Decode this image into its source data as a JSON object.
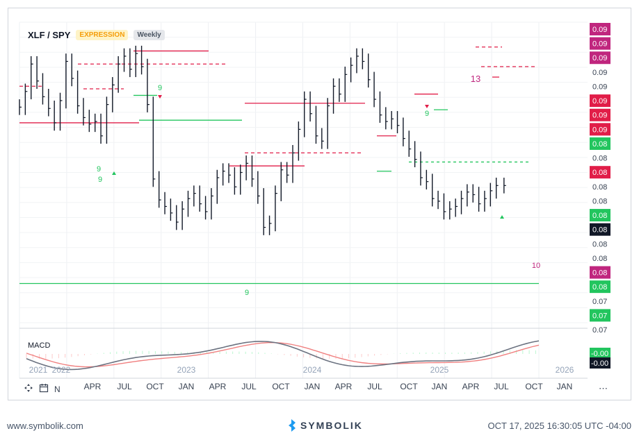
{
  "header": {
    "symbol": "XLF / SPY",
    "mode": "EXPRESSION",
    "interval": "Weekly"
  },
  "macd": {
    "label": "MACD"
  },
  "footer": {
    "website": "www.symbolik.com",
    "brand": "SYMBOLIK",
    "timestamp": "OCT 17, 2025 16:30:05 UTC -04:00"
  },
  "toolbar": {
    "nav_label": "N"
  },
  "colors": {
    "up_green": "#22c55e",
    "down_red": "#e11d48",
    "magenta": "#c0267e",
    "price_tag": "#111827",
    "macd_line": "#6b7280",
    "macd_signal": "#f08080"
  },
  "icons": [
    "crosshair-icon",
    "calendar-icon",
    "symbolik-logo-icon",
    "more-icon"
  ],
  "chart_data": {
    "type": "line",
    "title": "XLF / SPY",
    "grid": true,
    "x_tick_labels": [
      "2021",
      "2022",
      "APR",
      "JUL",
      "OCT",
      "JAN",
      "2023",
      "APR",
      "JUL",
      "OCT",
      "JAN",
      "2024",
      "APR",
      "JUL",
      "OCT",
      "JAN",
      "2025",
      "APR",
      "JUL",
      "OCT",
      "JAN",
      "2026"
    ],
    "y_axis_labels": [
      {
        "text": "0.09",
        "kind": "magenta"
      },
      {
        "text": "0.09",
        "kind": "magenta"
      },
      {
        "text": "0.09",
        "kind": "magenta"
      },
      {
        "text": "0.09",
        "kind": "plain"
      },
      {
        "text": "0.09",
        "kind": "plain"
      },
      {
        "text": "0.09",
        "kind": "red"
      },
      {
        "text": "0.09",
        "kind": "red"
      },
      {
        "text": "0.09",
        "kind": "red"
      },
      {
        "text": "0.08",
        "kind": "green"
      },
      {
        "text": "0.08",
        "kind": "plain"
      },
      {
        "text": "0.08",
        "kind": "red"
      },
      {
        "text": "0.08",
        "kind": "plain"
      },
      {
        "text": "0.08",
        "kind": "plain"
      },
      {
        "text": "0.08",
        "kind": "green"
      },
      {
        "text": "0.08",
        "kind": "black"
      },
      {
        "text": "0.08",
        "kind": "plain"
      },
      {
        "text": "0.08",
        "kind": "plain"
      },
      {
        "text": "0.08",
        "kind": "magenta"
      },
      {
        "text": "0.08",
        "kind": "green"
      },
      {
        "text": "0.07",
        "kind": "plain"
      },
      {
        "text": "0.07",
        "kind": "green"
      },
      {
        "text": "0.07",
        "kind": "plain"
      }
    ],
    "macd_labels": [
      {
        "text": "-0.00",
        "kind": "green"
      },
      {
        "text": "-0.00",
        "kind": "black"
      }
    ],
    "count_labels": [
      {
        "text": "13",
        "color": "magenta"
      },
      {
        "text": "9",
        "color": "green"
      },
      {
        "text": "9",
        "color": "green"
      },
      {
        "text": "9",
        "color": "green"
      },
      {
        "text": "9",
        "color": "green"
      },
      {
        "text": "9",
        "color": "green"
      },
      {
        "text": "10",
        "color": "magenta"
      }
    ],
    "series": [
      {
        "name": "XLF / SPY",
        "x": [
          0,
          3,
          6,
          9,
          12,
          15,
          18,
          21,
          24,
          27,
          30,
          33,
          36,
          39,
          42,
          45,
          48,
          51,
          54,
          57,
          60,
          63,
          66,
          69,
          72,
          75,
          78,
          81,
          84,
          87,
          90,
          93,
          96,
          99,
          102,
          105,
          108,
          111,
          114,
          117,
          120,
          123,
          126,
          129,
          132,
          135,
          138,
          141,
          144,
          147,
          150,
          153,
          156,
          159,
          162,
          165,
          168,
          171,
          174,
          177,
          180,
          183,
          186,
          189,
          192,
          195,
          198,
          201,
          204,
          207,
          210,
          213,
          216,
          219,
          222,
          225,
          228,
          231,
          234,
          237,
          240,
          243,
          246,
          250
        ],
        "y": [
          0.086,
          0.0872,
          0.0893,
          0.088,
          0.0868,
          0.0859,
          0.0848,
          0.0865,
          0.0895,
          0.0882,
          0.0861,
          0.0852,
          0.0847,
          0.0849,
          0.0838,
          0.0862,
          0.0877,
          0.0893,
          0.0899,
          0.0889,
          0.0901,
          0.0891,
          0.0862,
          0.0805,
          0.0789,
          0.0784,
          0.0779,
          0.0772,
          0.0782,
          0.079,
          0.0794,
          0.0786,
          0.078,
          0.0792,
          0.0806,
          0.0811,
          0.0808,
          0.0799,
          0.081,
          0.0817,
          0.0805,
          0.0792,
          0.0768,
          0.0771,
          0.0794,
          0.0812,
          0.0808,
          0.0825,
          0.0843,
          0.0866,
          0.0855,
          0.0838,
          0.0834,
          0.0861,
          0.0876,
          0.087,
          0.0885,
          0.0892,
          0.0899,
          0.0895,
          0.0881,
          0.0866,
          0.0854,
          0.0849,
          0.0851,
          0.0846,
          0.0836,
          0.0828,
          0.082,
          0.0806,
          0.0803,
          0.079,
          0.0788,
          0.078,
          0.0782,
          0.0784,
          0.079,
          0.0795,
          0.0793,
          0.0786,
          0.079,
          0.0796,
          0.08,
          0.08
        ]
      }
    ]
  }
}
